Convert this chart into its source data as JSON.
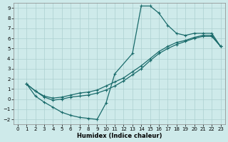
{
  "xlabel": "Humidex (Indice chaleur)",
  "xlim": [
    -0.5,
    23.5
  ],
  "ylim": [
    -2.5,
    9.5
  ],
  "xticks": [
    0,
    1,
    2,
    3,
    4,
    5,
    6,
    7,
    8,
    9,
    10,
    11,
    12,
    13,
    14,
    15,
    16,
    17,
    18,
    19,
    20,
    21,
    22,
    23
  ],
  "yticks": [
    -2,
    -1,
    0,
    1,
    2,
    3,
    4,
    5,
    6,
    7,
    8,
    9
  ],
  "bg_color": "#ceeaea",
  "grid_color": "#acd0d0",
  "line_color": "#1a6b6b",
  "line_width": 0.9,
  "marker": "+",
  "marker_size": 3,
  "marker_edge_width": 0.8,
  "curve1_x": [
    1,
    2,
    3,
    4,
    5,
    6,
    7,
    8,
    9,
    10,
    11,
    13,
    14,
    15,
    16,
    17,
    18,
    19,
    20,
    21,
    22,
    23
  ],
  "curve1_y": [
    1.5,
    0.3,
    -0.3,
    -0.8,
    -1.3,
    -1.6,
    -1.8,
    -1.9,
    -2.0,
    -0.4,
    2.5,
    4.5,
    9.2,
    9.2,
    8.5,
    7.3,
    6.5,
    6.3,
    6.5,
    6.5,
    6.5,
    5.2
  ],
  "curve2_x": [
    1,
    2,
    3,
    4,
    5,
    6,
    7,
    8,
    9,
    10,
    11,
    12,
    13,
    14,
    15,
    16,
    17,
    18,
    19,
    20,
    21,
    22,
    23
  ],
  "curve2_y": [
    1.5,
    0.8,
    0.3,
    0.1,
    0.2,
    0.4,
    0.6,
    0.7,
    0.9,
    1.3,
    1.7,
    2.1,
    2.7,
    3.3,
    4.0,
    4.7,
    5.2,
    5.6,
    5.8,
    6.1,
    6.3,
    6.3,
    5.2
  ],
  "curve3_x": [
    1,
    2,
    3,
    4,
    5,
    6,
    7,
    8,
    9,
    10,
    11,
    12,
    13,
    14,
    15,
    16,
    17,
    18,
    19,
    20,
    21,
    22,
    23
  ],
  "curve3_y": [
    1.5,
    0.8,
    0.2,
    -0.1,
    0.0,
    0.2,
    0.3,
    0.4,
    0.6,
    0.9,
    1.3,
    1.8,
    2.4,
    3.0,
    3.8,
    4.5,
    5.0,
    5.4,
    5.7,
    6.0,
    6.2,
    6.2,
    5.2
  ]
}
